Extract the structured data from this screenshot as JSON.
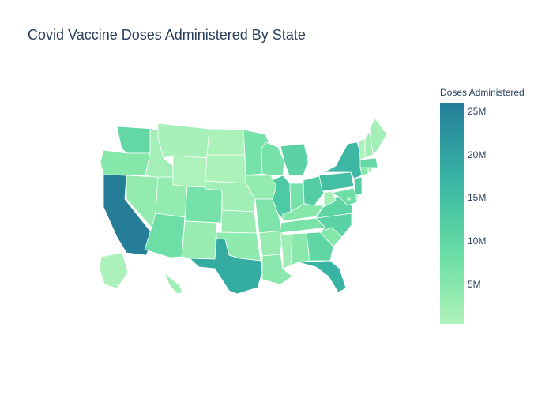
{
  "title": "Covid Vaccine Doses Administered By State",
  "colorbar": {
    "title": "Doses Administered",
    "min": 400000,
    "max": 26000000,
    "colors": [
      "#b0f2bc",
      "#89e8ac",
      "#67dba5",
      "#4cc8a3",
      "#38b2a3",
      "#2c98a0",
      "#257d98"
    ],
    "ticks": [
      {
        "label": "25M",
        "value": 25000000
      },
      {
        "label": "20M",
        "value": 20000000
      },
      {
        "label": "15M",
        "value": 15000000
      },
      {
        "label": "10M",
        "value": 10000000
      },
      {
        "label": "5M",
        "value": 5000000
      }
    ]
  },
  "chart_data": {
    "type": "choropleth",
    "scope": "usa",
    "values": {
      "CA": 26000000,
      "TX": 18500000,
      "NY": 16500000,
      "FL": 17000000,
      "PA": 15000000,
      "IL": 13000000,
      "OH": 12000000,
      "NJ": 12000000,
      "MI": 11000000,
      "NC": 11000000,
      "GA": 10000000,
      "VA": 10500000,
      "MA": 9500000,
      "WA": 9500000,
      "MD": 8000000,
      "AZ": 8000000,
      "IN": 7000000,
      "MN": 7000000,
      "WI": 7000000,
      "TN": 6500000,
      "CO": 7000000,
      "MO": 6000000,
      "SC": 5000000,
      "AL": 4500000,
      "LA": 4500000,
      "KY": 5000000,
      "OR": 5000000,
      "CT": 4800000,
      "OK": 4000000,
      "IA": 3500000,
      "UT": 3500000,
      "NV": 3500000,
      "AR": 3000000,
      "KS": 3000000,
      "MS": 2500000,
      "NM": 3000000,
      "NE": 2000000,
      "ID": 1800000,
      "WV": 1800000,
      "HI": 2000000,
      "NH": 1900000,
      "ME": 1800000,
      "RI": 1500000,
      "MT": 1300000,
      "DE": 1300000,
      "SD": 1000000,
      "ND": 900000,
      "AK": 900000,
      "VT": 1000000,
      "WY": 600000,
      "DC": 1000000
    }
  }
}
